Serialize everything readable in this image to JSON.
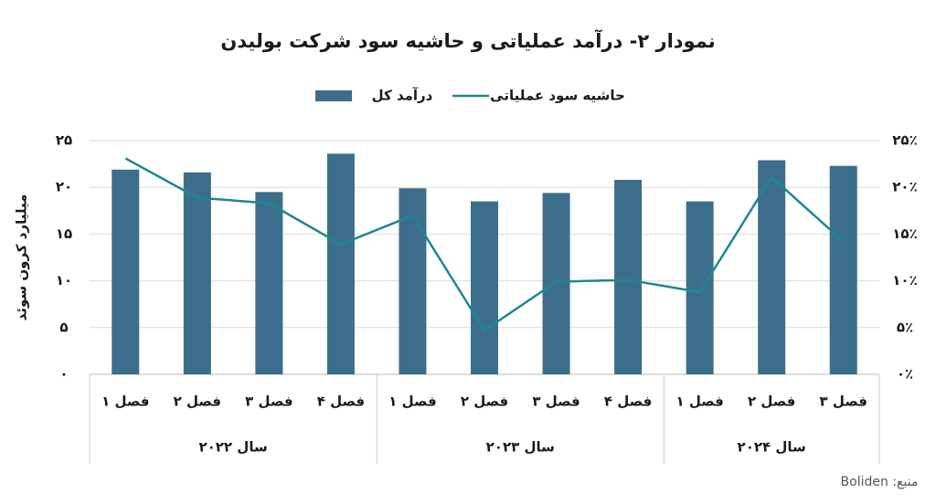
{
  "chart_data": {
    "type": "bar-line",
    "title": "نمودار ۲- درآمد عملیاتی و حاشیه سود شرکت بولیدن",
    "y_label": "میلیارد کرون سوئد",
    "source": "منبع: Boliden",
    "groups": [
      {
        "name": "سال ۲۰۲۲",
        "categories": [
          "فصل ۱",
          "فصل ۲",
          "فصل ۳",
          "فصل ۴"
        ]
      },
      {
        "name": "سال ۲۰۲۳",
        "categories": [
          "فصل ۱",
          "فصل ۲",
          "فصل ۳",
          "فصل ۴"
        ]
      },
      {
        "name": "سال ۲۰۲۴",
        "categories": [
          "فصل ۱",
          "فصل ۲",
          "فصل ۳"
        ]
      }
    ],
    "series": [
      {
        "name": "درآمد کل",
        "type": "bar",
        "color": "#3c6e8b",
        "values": [
          21.9,
          21.6,
          19.5,
          23.6,
          19.9,
          18.5,
          19.4,
          20.8,
          18.5,
          22.9,
          22.3
        ]
      },
      {
        "name": "حاشیه سود عملیاتی",
        "type": "line",
        "axis": "y2",
        "color": "#1d8791",
        "values": [
          23.1,
          18.9,
          18.3,
          13.9,
          17.0,
          4.7,
          9.9,
          10.1,
          8.8,
          21.1,
          14.2
        ]
      }
    ],
    "ylim": [
      0,
      25
    ],
    "yticks": [
      {
        "value": 0,
        "label": "۰"
      },
      {
        "value": 5,
        "label": "۵"
      },
      {
        "value": 10,
        "label": "۱۰"
      },
      {
        "value": 15,
        "label": "۱۵"
      },
      {
        "value": 20,
        "label": "۲۰"
      },
      {
        "value": 25,
        "label": "۲۵"
      }
    ],
    "y2lim": [
      0,
      25
    ],
    "y2ticks": [
      {
        "value": 0,
        "label": "۰٪"
      },
      {
        "value": 5,
        "label": "۵٪"
      },
      {
        "value": 10,
        "label": "۱۰٪"
      },
      {
        "value": 15,
        "label": "۱۵٪"
      },
      {
        "value": 20,
        "label": "۲۰٪"
      },
      {
        "value": 25,
        "label": "۲۵٪"
      }
    ],
    "grid": true,
    "legend": "top"
  }
}
